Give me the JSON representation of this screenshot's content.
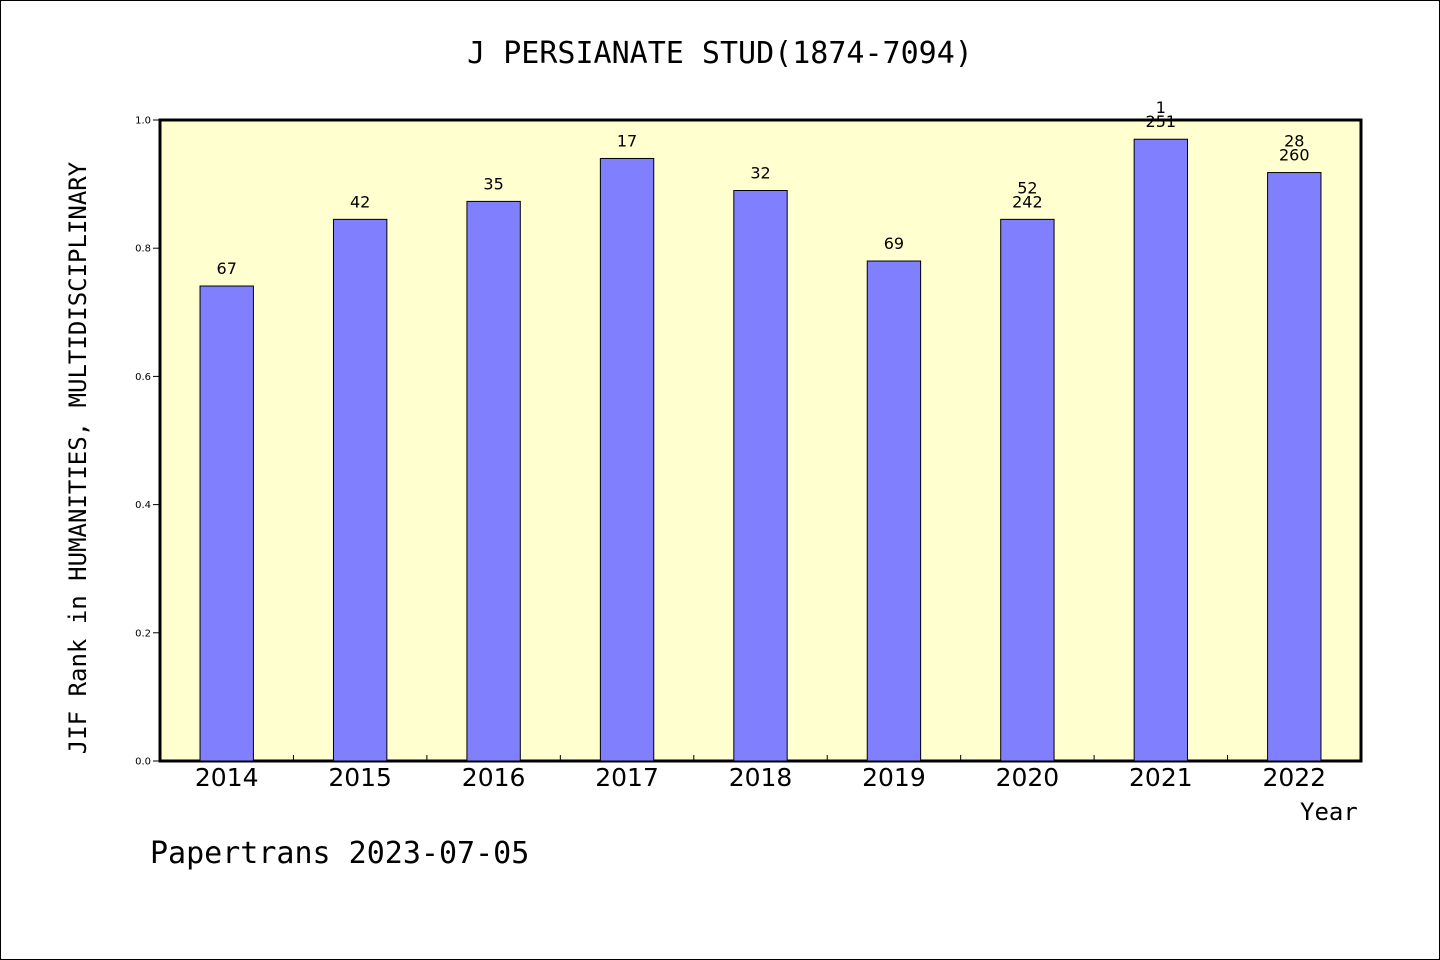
{
  "page": {
    "title": "J PERSIANATE STUD(1874-7094)",
    "footer": "Papertrans 2023-07-05"
  },
  "chart_data": {
    "type": "bar",
    "title": "J PERSIANATE STUD(1874-7094)",
    "xlabel": "Year",
    "ylabel": "JIF Rank in HUMANITIES, MULTIDISCIPLINARY",
    "categories": [
      "2014",
      "2015",
      "2016",
      "2017",
      "2018",
      "2019",
      "2020",
      "2021",
      "2022"
    ],
    "values": [
      0.741,
      0.845,
      0.873,
      0.94,
      0.89,
      0.78,
      0.845,
      0.97,
      0.918
    ],
    "bar_labels": [
      [
        "67"
      ],
      [
        "42"
      ],
      [
        "35"
      ],
      [
        "17"
      ],
      [
        "32"
      ],
      [
        "69"
      ],
      [
        "52",
        "242"
      ],
      [
        "1",
        "251"
      ],
      [
        "28",
        "260"
      ]
    ],
    "ylim": [
      0,
      1.0
    ],
    "yticks": [
      "0.0",
      "0.2",
      "0.4",
      "0.6",
      "0.8",
      "1.0"
    ],
    "grid": false,
    "plot_background": "#FFFFD0",
    "bar_color": "#8080FF"
  }
}
